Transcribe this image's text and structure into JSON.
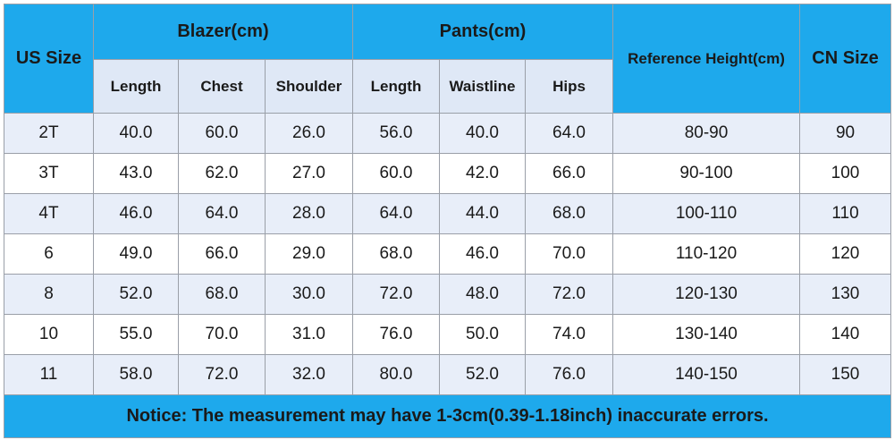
{
  "header": {
    "us_size": "US Size",
    "blazer": "Blazer(cm)",
    "pants": "Pants(cm)",
    "reference_height": "Reference Height(cm)",
    "cn_size": "CN Size"
  },
  "subheaders": [
    "Length",
    "Chest",
    "Shoulder",
    "Length",
    "Waistline",
    "Hips"
  ],
  "rows": [
    [
      "2T",
      "40.0",
      "60.0",
      "26.0",
      "56.0",
      "40.0",
      "64.0",
      "80-90",
      "90"
    ],
    [
      "3T",
      "43.0",
      "62.0",
      "27.0",
      "60.0",
      "42.0",
      "66.0",
      "90-100",
      "100"
    ],
    [
      "4T",
      "46.0",
      "64.0",
      "28.0",
      "64.0",
      "44.0",
      "68.0",
      "100-110",
      "110"
    ],
    [
      "6",
      "49.0",
      "66.0",
      "29.0",
      "68.0",
      "46.0",
      "70.0",
      "110-120",
      "120"
    ],
    [
      "8",
      "52.0",
      "68.0",
      "30.0",
      "72.0",
      "48.0",
      "72.0",
      "120-130",
      "130"
    ],
    [
      "10",
      "55.0",
      "70.0",
      "31.0",
      "76.0",
      "50.0",
      "74.0",
      "130-140",
      "140"
    ],
    [
      "11",
      "58.0",
      "72.0",
      "32.0",
      "80.0",
      "52.0",
      "76.0",
      "140-150",
      "150"
    ]
  ],
  "notice": "Notice: The measurement may have 1-3cm(0.39-1.18inch) inaccurate errors."
}
